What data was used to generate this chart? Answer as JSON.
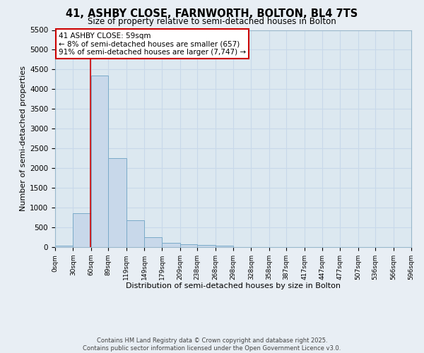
{
  "title": "41, ASHBY CLOSE, FARNWORTH, BOLTON, BL4 7TS",
  "subtitle": "Size of property relative to semi-detached houses in Bolton",
  "xlabel": "Distribution of semi-detached houses by size in Bolton",
  "ylabel": "Number of semi-detached properties",
  "bin_edges": [
    0,
    30,
    60,
    89,
    119,
    149,
    179,
    209,
    238,
    268,
    298,
    328,
    358,
    387,
    417,
    447,
    477,
    507,
    536,
    566,
    596
  ],
  "bin_labels": [
    "0sqm",
    "30sqm",
    "60sqm",
    "89sqm",
    "119sqm",
    "149sqm",
    "179sqm",
    "209sqm",
    "238sqm",
    "268sqm",
    "298sqm",
    "328sqm",
    "358sqm",
    "387sqm",
    "417sqm",
    "447sqm",
    "477sqm",
    "507sqm",
    "536sqm",
    "566sqm",
    "596sqm"
  ],
  "bar_heights": [
    30,
    850,
    4350,
    2250,
    680,
    255,
    115,
    70,
    55,
    35,
    0,
    0,
    0,
    0,
    0,
    0,
    0,
    0,
    0,
    0
  ],
  "bar_color": "#c8d8ea",
  "bar_edgecolor": "#7aaac8",
  "property_line_x": 59,
  "property_line_color": "#cc0000",
  "annotation_text": "41 ASHBY CLOSE: 59sqm\n← 8% of semi-detached houses are smaller (657)\n91% of semi-detached houses are larger (7,747) →",
  "annotation_box_edgecolor": "#cc0000",
  "ylim": [
    0,
    5500
  ],
  "yticks": [
    0,
    500,
    1000,
    1500,
    2000,
    2500,
    3000,
    3500,
    4000,
    4500,
    5000,
    5500
  ],
  "grid_color": "#c8d8ea",
  "plot_bg_color": "#dce8f0",
  "fig_bg_color": "#e8eef4",
  "footer_line1": "Contains HM Land Registry data © Crown copyright and database right 2025.",
  "footer_line2": "Contains public sector information licensed under the Open Government Licence v3.0."
}
